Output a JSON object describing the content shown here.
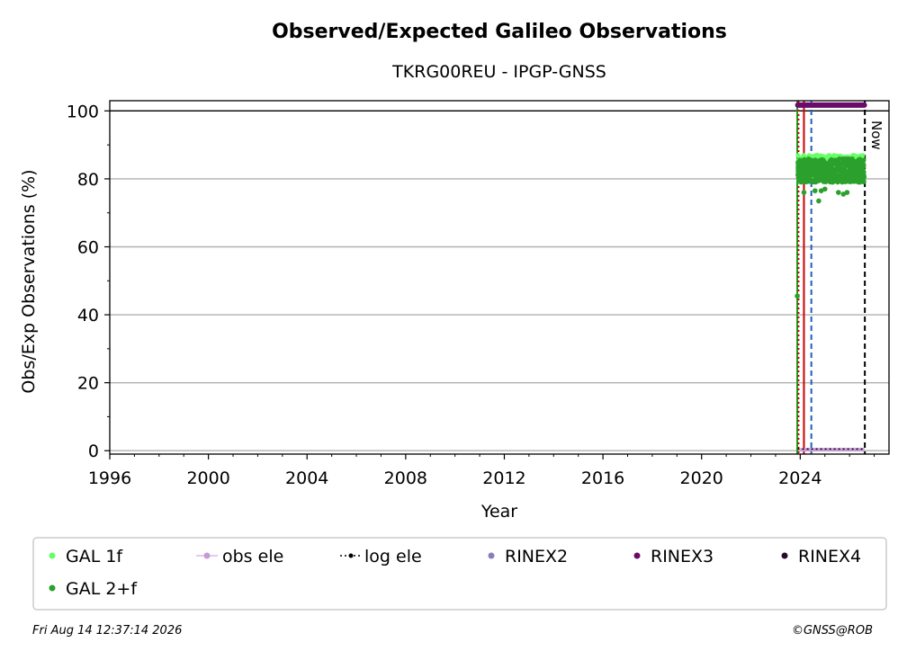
{
  "chart_data": {
    "type": "scatter",
    "title": "Observed/Expected Galileo Observations",
    "subtitle": "TKRG00REU - IPGP-GNSS",
    "xlabel": "Year",
    "ylabel": "Obs/Exp Observations (%)",
    "xlim": [
      1996,
      2027.6
    ],
    "ylim": [
      -1,
      103
    ],
    "x_ticks": [
      1996,
      2000,
      2004,
      2008,
      2012,
      2016,
      2020,
      2024
    ],
    "y_ticks": [
      0,
      20,
      40,
      60,
      80,
      100
    ],
    "grid": "horizontal",
    "reference_line": 100,
    "now_label": "Now",
    "now_year": 2026.62,
    "vertical_lines": [
      {
        "x": 2023.88,
        "color": "#1a9e1a",
        "style": "solid"
      },
      {
        "x": 2023.93,
        "color": "#cc0000",
        "style": "dotted"
      },
      {
        "x": 2024.15,
        "color": "#cc0000",
        "style": "solid"
      },
      {
        "x": 2024.45,
        "color": "#1f5fbf",
        "style": "dashed"
      },
      {
        "x": 2026.62,
        "color": "#000000",
        "style": "dashed"
      }
    ],
    "series": [
      {
        "name": "GAL 1f",
        "color": "#66ff66",
        "x_range": [
          2023.9,
          2026.6
        ],
        "band": [
          80,
          87
        ]
      },
      {
        "name": "GAL 2+f",
        "color": "#2ca02c",
        "x_range": [
          2023.9,
          2026.6
        ],
        "band": [
          79,
          86
        ],
        "outliers": [
          [
            2023.88,
            45.5
          ],
          [
            2024.15,
            76
          ],
          [
            2024.6,
            76.5
          ],
          [
            2024.75,
            73.5
          ],
          [
            2024.85,
            76.5
          ],
          [
            2025.0,
            77
          ],
          [
            2025.15,
            80
          ],
          [
            2025.3,
            79
          ],
          [
            2025.55,
            76
          ],
          [
            2025.75,
            75.5
          ],
          [
            2025.9,
            76
          ],
          [
            2026.1,
            80
          ],
          [
            2026.3,
            81
          ]
        ]
      },
      {
        "name": "obs ele",
        "color": "#c79ad6",
        "x_range": [
          2024.0,
          2026.6
        ],
        "y": 0.3
      },
      {
        "name": "log ele",
        "color": "#000000",
        "x_range": [
          2023.9,
          2026.6
        ],
        "y": 0.5
      },
      {
        "name": "RINEX2",
        "color": "#8a7dbf"
      },
      {
        "name": "RINEX3",
        "color": "#6a0a6a",
        "x_range": [
          2023.9,
          2026.6
        ],
        "y": 101.7
      },
      {
        "name": "RINEX4",
        "color": "#2a0a2a"
      }
    ]
  },
  "footer": {
    "timestamp": "Fri Aug 14 12:37:14 2026",
    "credit": "©GNSS@ROB"
  }
}
